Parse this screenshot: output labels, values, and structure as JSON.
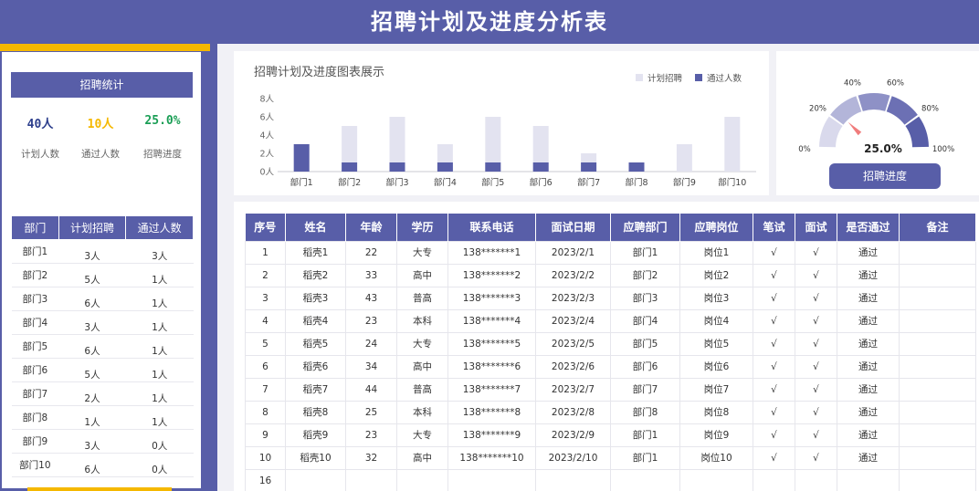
{
  "header": {
    "title": "招聘计划及进度分析表"
  },
  "stats": {
    "title": "招聘统计",
    "items": [
      {
        "value": "40人",
        "label": "计划人数",
        "color": "#2c3e8c"
      },
      {
        "value": "10人",
        "label": "通过人数",
        "color": "#f5b800"
      },
      {
        "value": "25.0%",
        "label": "招聘进度",
        "color": "#1a9e55"
      }
    ]
  },
  "dept_table": {
    "headers": [
      "部门",
      "计划招聘",
      "通过人数"
    ],
    "rows": [
      [
        "部门1",
        "3人",
        "3人"
      ],
      [
        "部门2",
        "5人",
        "1人"
      ],
      [
        "部门3",
        "6人",
        "1人"
      ],
      [
        "部门4",
        "3人",
        "1人"
      ],
      [
        "部门5",
        "6人",
        "1人"
      ],
      [
        "部门6",
        "5人",
        "1人"
      ],
      [
        "部门7",
        "2人",
        "1人"
      ],
      [
        "部门8",
        "1人",
        "1人"
      ],
      [
        "部门9",
        "3人",
        "0人"
      ],
      [
        "部门10",
        "6人",
        "0人"
      ]
    ]
  },
  "chart": {
    "title": "招聘计划及进度图表展示",
    "legend_plan": "计划招聘",
    "legend_pass": "通过人数"
  },
  "chart_data": {
    "type": "bar",
    "title": "招聘计划及进度图表展示",
    "categories": [
      "部门1",
      "部门2",
      "部门3",
      "部门4",
      "部门5",
      "部门6",
      "部门7",
      "部门8",
      "部门9",
      "部门10"
    ],
    "series": [
      {
        "name": "计划招聘",
        "values": [
          3,
          5,
          6,
          3,
          6,
          5,
          2,
          1,
          3,
          6
        ],
        "color": "#e3e3f0"
      },
      {
        "name": "通过人数",
        "values": [
          3,
          1,
          1,
          1,
          1,
          1,
          1,
          1,
          0,
          0
        ],
        "color": "#585ea8"
      }
    ],
    "ylim": [
      0,
      8
    ],
    "yticks": [
      "0人",
      "2人",
      "4人",
      "6人",
      "8人"
    ],
    "ytick_values": [
      0,
      2,
      4,
      6,
      8
    ]
  },
  "gauge": {
    "value": 0.25,
    "value_label": "25.0%",
    "ticks": [
      "0%",
      "20%",
      "40%",
      "60%",
      "80%",
      "100%"
    ],
    "button_label": "招聘进度"
  },
  "records": {
    "headers": [
      "序号",
      "姓名",
      "年龄",
      "学历",
      "联系电话",
      "面试日期",
      "应聘部门",
      "应聘岗位",
      "笔试",
      "面试",
      "是否通过",
      "备注"
    ],
    "rows": [
      [
        "1",
        "稻壳1",
        "22",
        "大专",
        "138*******1",
        "2023/2/1",
        "部门1",
        "岗位1",
        "√",
        "√",
        "通过",
        ""
      ],
      [
        "2",
        "稻壳2",
        "33",
        "高中",
        "138*******2",
        "2023/2/2",
        "部门2",
        "岗位2",
        "√",
        "√",
        "通过",
        ""
      ],
      [
        "3",
        "稻壳3",
        "43",
        "普高",
        "138*******3",
        "2023/2/3",
        "部门3",
        "岗位3",
        "√",
        "√",
        "通过",
        ""
      ],
      [
        "4",
        "稻壳4",
        "23",
        "本科",
        "138*******4",
        "2023/2/4",
        "部门4",
        "岗位4",
        "√",
        "√",
        "通过",
        ""
      ],
      [
        "5",
        "稻壳5",
        "24",
        "大专",
        "138*******5",
        "2023/2/5",
        "部门5",
        "岗位5",
        "√",
        "√",
        "通过",
        ""
      ],
      [
        "6",
        "稻壳6",
        "34",
        "高中",
        "138*******6",
        "2023/2/6",
        "部门6",
        "岗位6",
        "√",
        "√",
        "通过",
        ""
      ],
      [
        "7",
        "稻壳7",
        "44",
        "普高",
        "138*******7",
        "2023/2/7",
        "部门7",
        "岗位7",
        "√",
        "√",
        "通过",
        ""
      ],
      [
        "8",
        "稻壳8",
        "25",
        "本科",
        "138*******8",
        "2023/2/8",
        "部门8",
        "岗位8",
        "√",
        "√",
        "通过",
        ""
      ],
      [
        "9",
        "稻壳9",
        "23",
        "大专",
        "138*******9",
        "2023/2/9",
        "部门1",
        "岗位9",
        "√",
        "√",
        "通过",
        ""
      ],
      [
        "10",
        "稻壳10",
        "32",
        "高中",
        "138*******10",
        "2023/2/10",
        "部门1",
        "岗位10",
        "√",
        "√",
        "通过",
        ""
      ],
      [
        "16",
        "",
        "",
        "",
        "",
        "",
        "",
        "",
        "",
        "",
        "",
        ""
      ]
    ]
  }
}
